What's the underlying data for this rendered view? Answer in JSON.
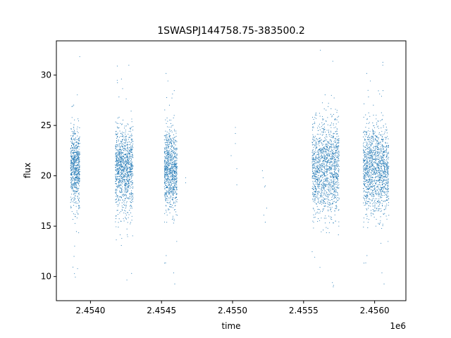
{
  "chart_data": {
    "type": "scatter",
    "title": "1SWASPJ144758.75-383500.2",
    "xlabel": "time",
    "ylabel": "flux",
    "x_offset_label": "1e6",
    "xlim": [
      2453760,
      2456220
    ],
    "ylim": [
      7.6,
      33.4
    ],
    "x_ticks": [
      2.454,
      2.4545,
      2.455,
      2.4555,
      2.456
    ],
    "x_tick_labels": [
      "2.4540",
      "2.4545",
      "2.4550",
      "2.4555",
      "2.4560"
    ],
    "y_ticks": [
      10,
      15,
      20,
      25,
      30
    ],
    "y_tick_labels": [
      "10",
      "15",
      "20",
      "25",
      "30"
    ],
    "grid": false,
    "point_color": "#1f77b4",
    "series": [
      {
        "clusters": [
          {
            "x_start": 2453860,
            "x_end": 2453925,
            "y_center": 20.8,
            "y_sd": 1.9,
            "count": 700
          },
          {
            "x_start": 2454175,
            "x_end": 2454300,
            "y_center": 20.6,
            "y_sd": 2.0,
            "count": 1100
          },
          {
            "x_start": 2454520,
            "x_end": 2454610,
            "y_center": 20.6,
            "y_sd": 2.0,
            "count": 900
          },
          {
            "x_start": 2455560,
            "x_end": 2455750,
            "y_center": 20.7,
            "y_sd": 2.3,
            "count": 1400
          },
          {
            "x_start": 2455920,
            "x_end": 2456100,
            "y_center": 20.6,
            "y_sd": 2.2,
            "count": 1400
          }
        ],
        "sparse_points": [
          {
            "x": 2454670,
            "y": 19.8
          },
          {
            "x": 2454670,
            "y": 19.3
          },
          {
            "x": 2454990,
            "y": 22.0
          },
          {
            "x": 2455020,
            "y": 24.8
          },
          {
            "x": 2455020,
            "y": 24.2
          },
          {
            "x": 2455030,
            "y": 20.7
          },
          {
            "x": 2455030,
            "y": 19.1
          },
          {
            "x": 2455020,
            "y": 23.2
          },
          {
            "x": 2455210,
            "y": 20.5
          },
          {
            "x": 2455215,
            "y": 19.8
          },
          {
            "x": 2455230,
            "y": 19.0
          },
          {
            "x": 2455220,
            "y": 16.1
          },
          {
            "x": 2455240,
            "y": 16.8
          },
          {
            "x": 2455230,
            "y": 15.4
          },
          {
            "x": 2455225,
            "y": 18.9
          }
        ]
      }
    ]
  }
}
